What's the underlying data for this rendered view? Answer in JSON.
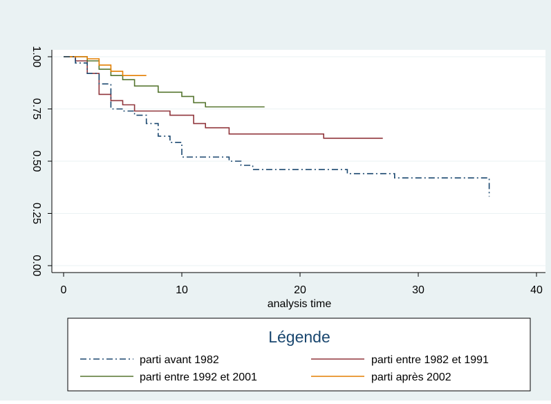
{
  "chart_data": {
    "type": "line",
    "step": true,
    "title": "",
    "xlabel": "analysis time",
    "ylabel": "",
    "xlim": [
      0,
      40
    ],
    "ylim": [
      0,
      1
    ],
    "xticks": [
      0,
      10,
      20,
      30,
      40
    ],
    "xtick_labels": [
      "0",
      "10",
      "20",
      "30",
      "40"
    ],
    "yticks": [
      0,
      0.25,
      0.5,
      0.75,
      1
    ],
    "ytick_labels": [
      "0.00",
      "0.25",
      "0.50",
      "0.75",
      "1.00"
    ],
    "grid": true,
    "legend": {
      "title": "Légende",
      "placement": "bottom",
      "columns": 2
    },
    "colors": {
      "background": "#eaf2f3",
      "plot_background": "#ffffff",
      "grid": "#eaf2f3"
    },
    "series": [
      {
        "name": "parti avant 1982",
        "color": "#1a476f",
        "dash": "dash-dot",
        "x": [
          0,
          1,
          2,
          3,
          4,
          5,
          6,
          7,
          8,
          9,
          10,
          14,
          15,
          16,
          24,
          28,
          36,
          36
        ],
        "y": [
          1.0,
          0.97,
          0.92,
          0.87,
          0.75,
          0.74,
          0.72,
          0.68,
          0.62,
          0.59,
          0.52,
          0.5,
          0.48,
          0.46,
          0.44,
          0.42,
          0.42,
          0.33
        ]
      },
      {
        "name": "parti entre 1982 et 1991",
        "color": "#90353b",
        "dash": "solid",
        "x": [
          0,
          1,
          2,
          3,
          4,
          5,
          6,
          9,
          11,
          12,
          14,
          22,
          27
        ],
        "y": [
          1.0,
          0.98,
          0.92,
          0.82,
          0.79,
          0.77,
          0.74,
          0.72,
          0.68,
          0.66,
          0.63,
          0.61,
          0.61
        ]
      },
      {
        "name": "parti entre 1992 et 2001",
        "color": "#55752f",
        "dash": "solid",
        "x": [
          0,
          2,
          3,
          4,
          5,
          6,
          8,
          10,
          11,
          12,
          17
        ],
        "y": [
          1.0,
          0.98,
          0.94,
          0.91,
          0.89,
          0.86,
          0.83,
          0.81,
          0.78,
          0.76,
          0.76
        ]
      },
      {
        "name": "parti après 2002",
        "color": "#e37e00",
        "dash": "solid",
        "x": [
          0,
          2,
          3,
          4,
          5,
          7
        ],
        "y": [
          1.0,
          0.99,
          0.96,
          0.93,
          0.91,
          0.91
        ]
      }
    ]
  }
}
